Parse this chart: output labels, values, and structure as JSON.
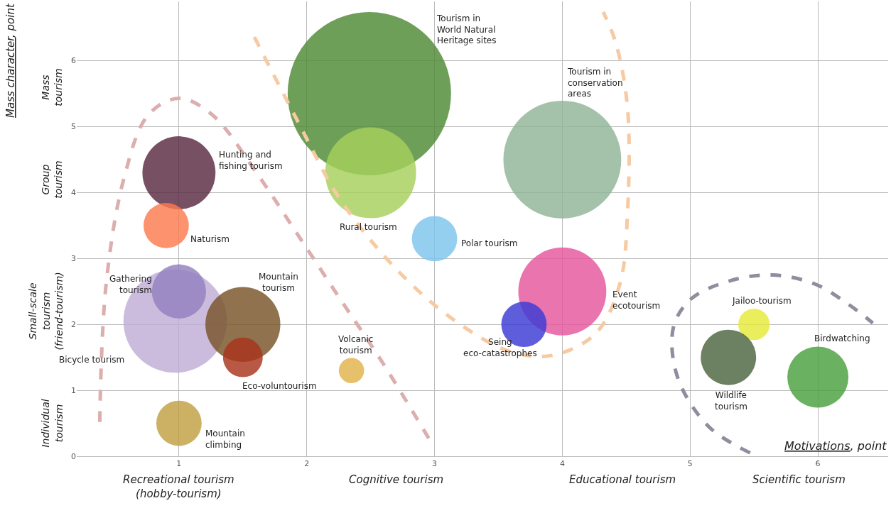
{
  "chart_data": {
    "type": "bubble",
    "xlabel": "Motivations, point",
    "xlim": [
      0.2,
      6.55
    ],
    "ylim": [
      0,
      6.9
    ],
    "xticks": [
      1,
      2,
      3,
      4,
      5,
      6
    ],
    "yticks": [
      0,
      1,
      2,
      3,
      4,
      5,
      6
    ],
    "grid": true,
    "legend": false,
    "annotations": [
      "Individual tourism",
      "Small-scale tourism (friend-tourism)",
      "Group tourism",
      "Mass tourism",
      "Recreational tourism (hobby-tourism)",
      "Cognitive tourism",
      "Educational tourism",
      "Scientific tourism",
      "Mass character, point"
    ],
    "series": [
      {
        "type": "line",
        "line_style": "dashed",
        "color": "#dcaeae",
        "x": [
          0.38,
          0.43,
          0.57,
          0.76,
          1.0,
          1.26,
          1.6,
          1.93,
          2.26,
          2.59,
          2.98
        ],
        "values": [
          0.52,
          2.61,
          4.22,
          5.18,
          5.43,
          5.18,
          4.32,
          3.36,
          2.39,
          1.43,
          0.19
        ]
      },
      {
        "type": "line",
        "line_style": "dashed",
        "color": "#f6caa2",
        "x": [
          1.59,
          1.93,
          2.26,
          2.71,
          3.15,
          3.59,
          3.92,
          4.26,
          4.45,
          4.51,
          4.51,
          4.42,
          4.32
        ],
        "values": [
          6.36,
          5.08,
          3.9,
          2.82,
          2.07,
          1.59,
          1.53,
          1.86,
          2.61,
          3.68,
          5.29,
          6.26,
          6.74
        ]
      },
      {
        "type": "line",
        "line_style": "dashed",
        "color": "#8e8e9e",
        "x": [
          5.47,
          5.14,
          4.9,
          4.87,
          5.01,
          5.31,
          5.64,
          5.98,
          6.25,
          6.43
        ],
        "values": [
          0.05,
          0.46,
          1.21,
          1.96,
          2.39,
          2.66,
          2.75,
          2.61,
          2.29,
          2.02
        ]
      },
      {
        "name": "Tourism in World Natural Heritage sites",
        "color": "#4e8a35",
        "x": [
          2.49
        ],
        "values": [
          5.5
        ],
        "sizes": [
          1
        ]
      },
      {
        "name": "Tourism in conservation areas",
        "color": "#8fb596",
        "x": [
          4.0
        ],
        "values": [
          4.5
        ],
        "sizes": [
          0.52
        ]
      },
      {
        "name": "Rural tourism",
        "color": "#a6cf5a",
        "x": [
          2.5
        ],
        "values": [
          4.3
        ],
        "sizes": [
          0.31
        ]
      },
      {
        "name": "Hunting and fishing tourism",
        "color": "#5a2a42",
        "x": [
          1.0
        ],
        "values": [
          4.3
        ],
        "sizes": [
          0.2
        ]
      },
      {
        "name": "Naturism",
        "color": "#fc7a4e",
        "x": [
          0.9
        ],
        "values": [
          3.5
        ],
        "sizes": [
          0.077
        ]
      },
      {
        "name": "Polar tourism",
        "color": "#7ec4ec",
        "x": [
          3.0
        ],
        "values": [
          3.3
        ],
        "sizes": [
          0.077
        ]
      },
      {
        "name": "Event ecotourism",
        "color": "#e5559c",
        "x": [
          4.0
        ],
        "values": [
          2.5
        ],
        "sizes": [
          0.29
        ]
      },
      {
        "name": "Seing eco-catastrophes",
        "color": "#3a3ad6",
        "x": [
          3.7
        ],
        "values": [
          2.0
        ],
        "sizes": [
          0.077
        ]
      },
      {
        "name": "Bicycle tourism",
        "color": "#bfacd6",
        "x": [
          0.97
        ],
        "values": [
          2.05
        ],
        "sizes": [
          0.4
        ]
      },
      {
        "name": "Gathering tourism",
        "color": "#9280c0",
        "x": [
          1.0
        ],
        "values": [
          2.5
        ],
        "sizes": [
          0.11
        ]
      },
      {
        "name": "Mountain tourism",
        "color": "#775328",
        "x": [
          1.5
        ],
        "values": [
          2.0
        ],
        "sizes": [
          0.21
        ]
      },
      {
        "name": "Eco-voluntourism",
        "color": "#a8351c",
        "x": [
          1.5
        ],
        "values": [
          1.5
        ],
        "sizes": [
          0.059
        ]
      },
      {
        "name": "Volcanic tourism",
        "color": "#e0b24a",
        "x": [
          2.35
        ],
        "values": [
          1.3
        ],
        "sizes": [
          0.024
        ]
      },
      {
        "name": "Mountain climbing",
        "color": "#c1a043",
        "x": [
          1.0
        ],
        "values": [
          0.5
        ],
        "sizes": [
          0.077
        ]
      },
      {
        "name": "Jailoo-tourism",
        "color": "#e6ea38",
        "x": [
          5.5
        ],
        "values": [
          2.0
        ],
        "sizes": [
          0.037
        ]
      },
      {
        "name": "Wildlife tourism",
        "color": "#4c6440",
        "x": [
          5.3
        ],
        "values": [
          1.5
        ],
        "sizes": [
          0.115
        ]
      },
      {
        "name": "Birdwatching",
        "color": "#4aa040",
        "x": [
          6.0
        ],
        "values": [
          1.2
        ],
        "sizes": [
          0.14
        ]
      }
    ]
  }
}
